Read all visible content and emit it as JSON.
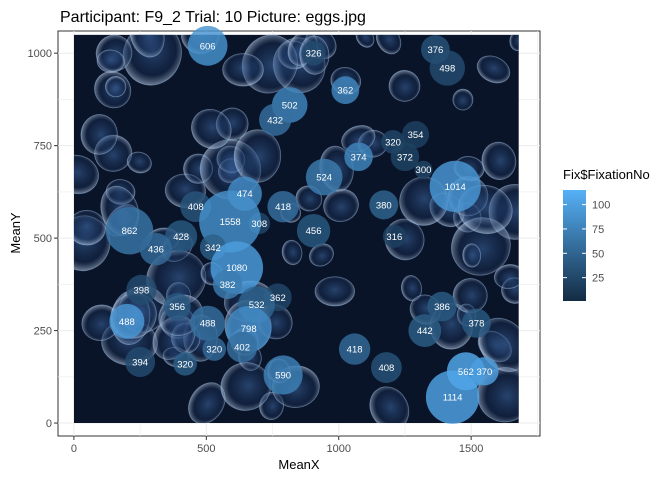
{
  "chart_data": {
    "type": "scatter",
    "title": "Participant: F9_2 Trial: 10 Picture: eggs.jpg",
    "xlabel": "MeanX",
    "ylabel": "MeanY",
    "xlim": [
      -60,
      1760
    ],
    "ylim": [
      -35,
      1060
    ],
    "x_ticks": [
      0,
      500,
      1000,
      1500
    ],
    "y_ticks": [
      0,
      250,
      500,
      750,
      1000
    ],
    "grid": true,
    "background_image_extent": {
      "x": [
        0,
        1680
      ],
      "y": [
        0,
        1050
      ]
    },
    "background_image_description": "photo of translucent fish eggs on dark blue background",
    "legend": {
      "title": "Fix$FixationNo",
      "position": "right",
      "ticks": [
        25,
        50,
        75,
        100
      ],
      "range": [
        1,
        115
      ],
      "low_color": "#132B43",
      "high_color": "#56B1F7"
    },
    "point_label_variable": "fixation duration (printed next to each point)",
    "points": [
      {
        "x": 505,
        "y": 1020,
        "label": "606",
        "fix": 90
      },
      {
        "x": 905,
        "y": 1000,
        "label": "326",
        "fix": 28
      },
      {
        "x": 1365,
        "y": 1010,
        "label": "376",
        "fix": 35
      },
      {
        "x": 1410,
        "y": 960,
        "label": "498",
        "fix": 30
      },
      {
        "x": 1025,
        "y": 900,
        "label": "362",
        "fix": 80
      },
      {
        "x": 815,
        "y": 860,
        "label": "502",
        "fix": 78
      },
      {
        "x": 760,
        "y": 820,
        "label": "432",
        "fix": 60
      },
      {
        "x": 1205,
        "y": 760,
        "label": "320",
        "fix": 25
      },
      {
        "x": 1290,
        "y": 780,
        "label": "354",
        "fix": 20
      },
      {
        "x": 1075,
        "y": 720,
        "label": "374",
        "fix": 80
      },
      {
        "x": 1250,
        "y": 720,
        "label": "372",
        "fix": 22
      },
      {
        "x": 1320,
        "y": 685,
        "label": "300",
        "fix": 24
      },
      {
        "x": 1440,
        "y": 640,
        "label": "1014",
        "fix": 95
      },
      {
        "x": 945,
        "y": 665,
        "label": "524",
        "fix": 70
      },
      {
        "x": 645,
        "y": 620,
        "label": "474",
        "fix": 85
      },
      {
        "x": 460,
        "y": 585,
        "label": "408",
        "fix": 38
      },
      {
        "x": 790,
        "y": 585,
        "label": "418",
        "fix": 60
      },
      {
        "x": 1170,
        "y": 590,
        "label": "380",
        "fix": 50
      },
      {
        "x": 700,
        "y": 540,
        "label": "308",
        "fix": 25
      },
      {
        "x": 590,
        "y": 545,
        "label": "1558",
        "fix": 88
      },
      {
        "x": 905,
        "y": 520,
        "label": "456",
        "fix": 40
      },
      {
        "x": 1210,
        "y": 505,
        "label": "316",
        "fix": 20
      },
      {
        "x": 210,
        "y": 520,
        "label": "862",
        "fix": 65
      },
      {
        "x": 405,
        "y": 505,
        "label": "428",
        "fix": 40
      },
      {
        "x": 525,
        "y": 475,
        "label": "342",
        "fix": 45
      },
      {
        "x": 310,
        "y": 470,
        "label": "436",
        "fix": 55
      },
      {
        "x": 615,
        "y": 420,
        "label": "1080",
        "fix": 100
      },
      {
        "x": 255,
        "y": 360,
        "label": "398",
        "fix": 30
      },
      {
        "x": 580,
        "y": 375,
        "label": "382",
        "fix": 70
      },
      {
        "x": 770,
        "y": 340,
        "label": "362",
        "fix": 25
      },
      {
        "x": 690,
        "y": 320,
        "label": "532",
        "fix": 50
      },
      {
        "x": 390,
        "y": 315,
        "label": "356",
        "fix": 40
      },
      {
        "x": 1390,
        "y": 315,
        "label": "386",
        "fix": 42
      },
      {
        "x": 200,
        "y": 275,
        "label": "488",
        "fix": 95
      },
      {
        "x": 505,
        "y": 270,
        "label": "488",
        "fix": 60
      },
      {
        "x": 660,
        "y": 255,
        "label": "798",
        "fix": 85
      },
      {
        "x": 1520,
        "y": 270,
        "label": "378",
        "fix": 40
      },
      {
        "x": 1325,
        "y": 250,
        "label": "442",
        "fix": 45
      },
      {
        "x": 530,
        "y": 200,
        "label": "320",
        "fix": 55
      },
      {
        "x": 635,
        "y": 205,
        "label": "402",
        "fix": 60
      },
      {
        "x": 1060,
        "y": 200,
        "label": "418",
        "fix": 55
      },
      {
        "x": 250,
        "y": 165,
        "label": "394",
        "fix": 30
      },
      {
        "x": 420,
        "y": 160,
        "label": "320",
        "fix": 45
      },
      {
        "x": 1180,
        "y": 150,
        "label": "408",
        "fix": 35
      },
      {
        "x": 790,
        "y": 130,
        "label": "590",
        "fix": 75
      },
      {
        "x": 1480,
        "y": 140,
        "label": "562",
        "fix": 110
      },
      {
        "x": 1550,
        "y": 140,
        "label": "370",
        "fix": 100
      },
      {
        "x": 1430,
        "y": 70,
        "label": "1114",
        "fix": 105
      }
    ]
  }
}
